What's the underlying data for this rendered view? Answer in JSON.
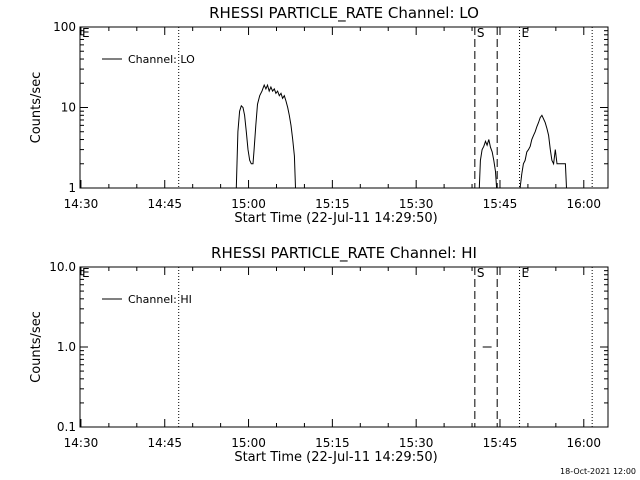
{
  "footer": {
    "timestamp": "18-Oct-2021 12:00"
  },
  "chart_data": [
    {
      "type": "line",
      "title": "RHESSI PARTICLE_RATE Channel: LO",
      "xlabel": "Start Time (22-Jul-11 14:29:50)",
      "ylabel": "Counts/sec",
      "y_scale": "log",
      "ylim": [
        1,
        100
      ],
      "xlim_minutes": [
        -0.1667,
        94.3333
      ],
      "x_tick_labels": [
        "14:30",
        "14:45",
        "15:00",
        "15:15",
        "15:30",
        "15:45",
        "16:00"
      ],
      "x_tick_minutes": [
        0,
        15,
        30,
        45,
        60,
        75,
        90
      ],
      "y_tick_labels": [
        "1",
        "10",
        "100"
      ],
      "y_tick_values": [
        1,
        10,
        100
      ],
      "legend": {
        "position": "top-left",
        "entries": [
          "Channel: LO"
        ]
      },
      "series": [
        {
          "name": "Channel: LO",
          "segments": [
            [
              [
                27.8,
                1
              ],
              [
                28.1,
                5
              ],
              [
                28.4,
                9
              ],
              [
                28.7,
                10.5
              ],
              [
                29.0,
                10
              ],
              [
                29.3,
                8
              ],
              [
                29.6,
                5
              ],
              [
                29.9,
                3
              ],
              [
                30.2,
                2.2
              ],
              [
                30.5,
                2
              ],
              [
                30.8,
                2
              ],
              [
                31.0,
                3
              ],
              [
                31.3,
                6
              ],
              [
                31.6,
                11
              ],
              [
                32.0,
                14
              ],
              [
                32.4,
                16
              ],
              [
                32.8,
                19
              ],
              [
                33.1,
                17
              ],
              [
                33.4,
                19
              ],
              [
                33.7,
                16
              ],
              [
                34.0,
                18
              ],
              [
                34.3,
                16
              ],
              [
                34.6,
                17
              ],
              [
                34.9,
                15
              ],
              [
                35.2,
                16
              ],
              [
                35.5,
                14
              ],
              [
                35.8,
                15
              ],
              [
                36.1,
                13
              ],
              [
                36.4,
                14
              ],
              [
                36.7,
                12
              ],
              [
                37.0,
                10
              ],
              [
                37.3,
                8
              ],
              [
                37.6,
                6
              ],
              [
                37.9,
                4
              ],
              [
                38.2,
                2.5
              ],
              [
                38.4,
                1
              ]
            ],
            [
              [
                71.3,
                1
              ],
              [
                71.5,
                2.2
              ],
              [
                71.8,
                3
              ],
              [
                72.1,
                3.3
              ],
              [
                72.4,
                3.8
              ],
              [
                72.7,
                3.4
              ],
              [
                73.0,
                4
              ],
              [
                73.3,
                3.2
              ],
              [
                73.6,
                2.8
              ],
              [
                73.9,
                2.2
              ],
              [
                74.2,
                1.6
              ],
              [
                74.4,
                1
              ]
            ],
            [
              [
                78.6,
                1
              ],
              [
                78.9,
                1.5
              ],
              [
                79.2,
                2
              ],
              [
                79.5,
                2.2
              ],
              [
                79.8,
                2.8
              ],
              [
                80.1,
                3
              ],
              [
                80.4,
                3.3
              ],
              [
                80.7,
                4
              ],
              [
                81.0,
                4.5
              ],
              [
                81.3,
                5
              ],
              [
                81.6,
                5.8
              ],
              [
                81.9,
                6.5
              ],
              [
                82.2,
                7.5
              ],
              [
                82.5,
                8
              ],
              [
                82.8,
                7.2
              ],
              [
                83.1,
                6.5
              ],
              [
                83.4,
                5.5
              ],
              [
                83.7,
                4.5
              ],
              [
                84.0,
                3
              ],
              [
                84.3,
                2.2
              ],
              [
                84.6,
                2
              ],
              [
                84.9,
                3
              ],
              [
                85.2,
                2
              ],
              [
                85.5,
                2
              ],
              [
                85.8,
                2
              ],
              [
                86.1,
                2
              ],
              [
                86.4,
                2
              ],
              [
                86.7,
                2
              ],
              [
                86.9,
                1
              ]
            ]
          ]
        }
      ],
      "vlines": [
        {
          "style": "dotted",
          "minute": 17.5,
          "label": ""
        },
        {
          "style": "dashed",
          "minute": 70.5,
          "label": "S"
        },
        {
          "style": "dashed",
          "minute": 74.5,
          "label": ""
        },
        {
          "style": "dotted",
          "minute": 78.5,
          "label": "E"
        },
        {
          "style": "dotted",
          "minute": 91.5,
          "label": ""
        }
      ],
      "corner_marker": "E"
    },
    {
      "type": "line",
      "title": "RHESSI PARTICLE_RATE Channel: HI",
      "xlabel": "Start Time (22-Jul-11 14:29:50)",
      "ylabel": "Counts/sec",
      "y_scale": "log",
      "ylim": [
        0.1,
        10
      ],
      "xlim_minutes": [
        -0.1667,
        94.3333
      ],
      "x_tick_labels": [
        "14:30",
        "14:45",
        "15:00",
        "15:15",
        "15:30",
        "15:45",
        "16:00"
      ],
      "x_tick_minutes": [
        0,
        15,
        30,
        45,
        60,
        75,
        90
      ],
      "y_tick_labels": [
        "0.1",
        "1.0",
        "10.0"
      ],
      "y_tick_values": [
        0.1,
        1,
        10
      ],
      "legend": {
        "position": "top-left",
        "entries": [
          "Channel: HI"
        ]
      },
      "series": [
        {
          "name": "Channel: HI",
          "segments": [
            [
              [
                71.9,
                1
              ],
              [
                73.5,
                1
              ]
            ]
          ]
        }
      ],
      "vlines": [
        {
          "style": "dotted",
          "minute": 17.5,
          "label": ""
        },
        {
          "style": "dashed",
          "minute": 70.5,
          "label": "S"
        },
        {
          "style": "dashed",
          "minute": 74.5,
          "label": ""
        },
        {
          "style": "dotted",
          "minute": 78.5,
          "label": "E"
        },
        {
          "style": "dotted",
          "minute": 91.5,
          "label": ""
        }
      ],
      "corner_marker": "E"
    }
  ]
}
